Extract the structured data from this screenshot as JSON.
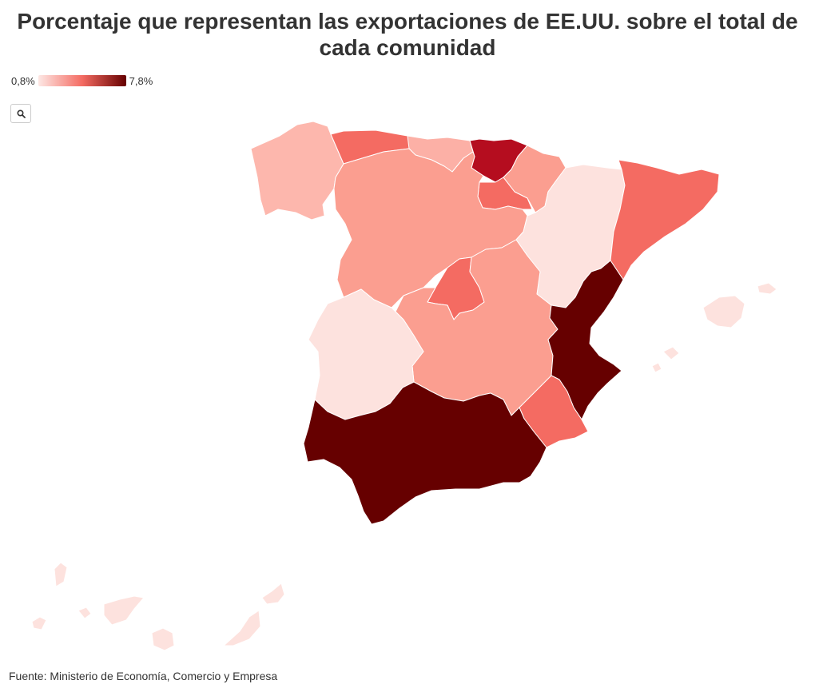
{
  "header": {
    "title": "Porcentaje que representan las exportaciones de EE.UU. sobre el total de cada comunidad"
  },
  "legend": {
    "min_label": "0,8%",
    "max_label": "7,8%",
    "color_min": "#fde7e4",
    "color_mid": "#f46b62",
    "color_max": "#660000"
  },
  "controls": {
    "zoom_icon": "search-icon"
  },
  "map_data": {
    "type": "choropleth",
    "unit": "%",
    "regions": [
      {
        "id": "galicia",
        "level": "light"
      },
      {
        "id": "asturias",
        "level": "medium-high"
      },
      {
        "id": "cantabria",
        "level": "light-medium"
      },
      {
        "id": "pais-vasco",
        "level": "high"
      },
      {
        "id": "navarra",
        "level": "medium"
      },
      {
        "id": "la-rioja",
        "level": "medium-high"
      },
      {
        "id": "castilla-y-leon",
        "level": "medium"
      },
      {
        "id": "aragon",
        "level": "very-light"
      },
      {
        "id": "cataluna",
        "level": "medium-high"
      },
      {
        "id": "madrid",
        "level": "medium-high"
      },
      {
        "id": "castilla-la-mancha",
        "level": "medium"
      },
      {
        "id": "extremadura",
        "level": "very-light"
      },
      {
        "id": "comunidad-valenciana",
        "level": "max"
      },
      {
        "id": "murcia",
        "level": "medium-high"
      },
      {
        "id": "andalucia",
        "level": "max"
      },
      {
        "id": "baleares",
        "level": "very-light"
      },
      {
        "id": "canarias",
        "level": "very-light"
      }
    ]
  },
  "colors": {
    "max": "#660000",
    "high": "#b50d1f",
    "medium-high": "#f46b62",
    "medium": "#fb9e90",
    "light-medium": "#fcb0a6",
    "light": "#fdb7ad",
    "very-light": "#fde2de"
  },
  "footer": {
    "source": "Fuente: Ministerio de Economía, Comercio y Empresa"
  }
}
